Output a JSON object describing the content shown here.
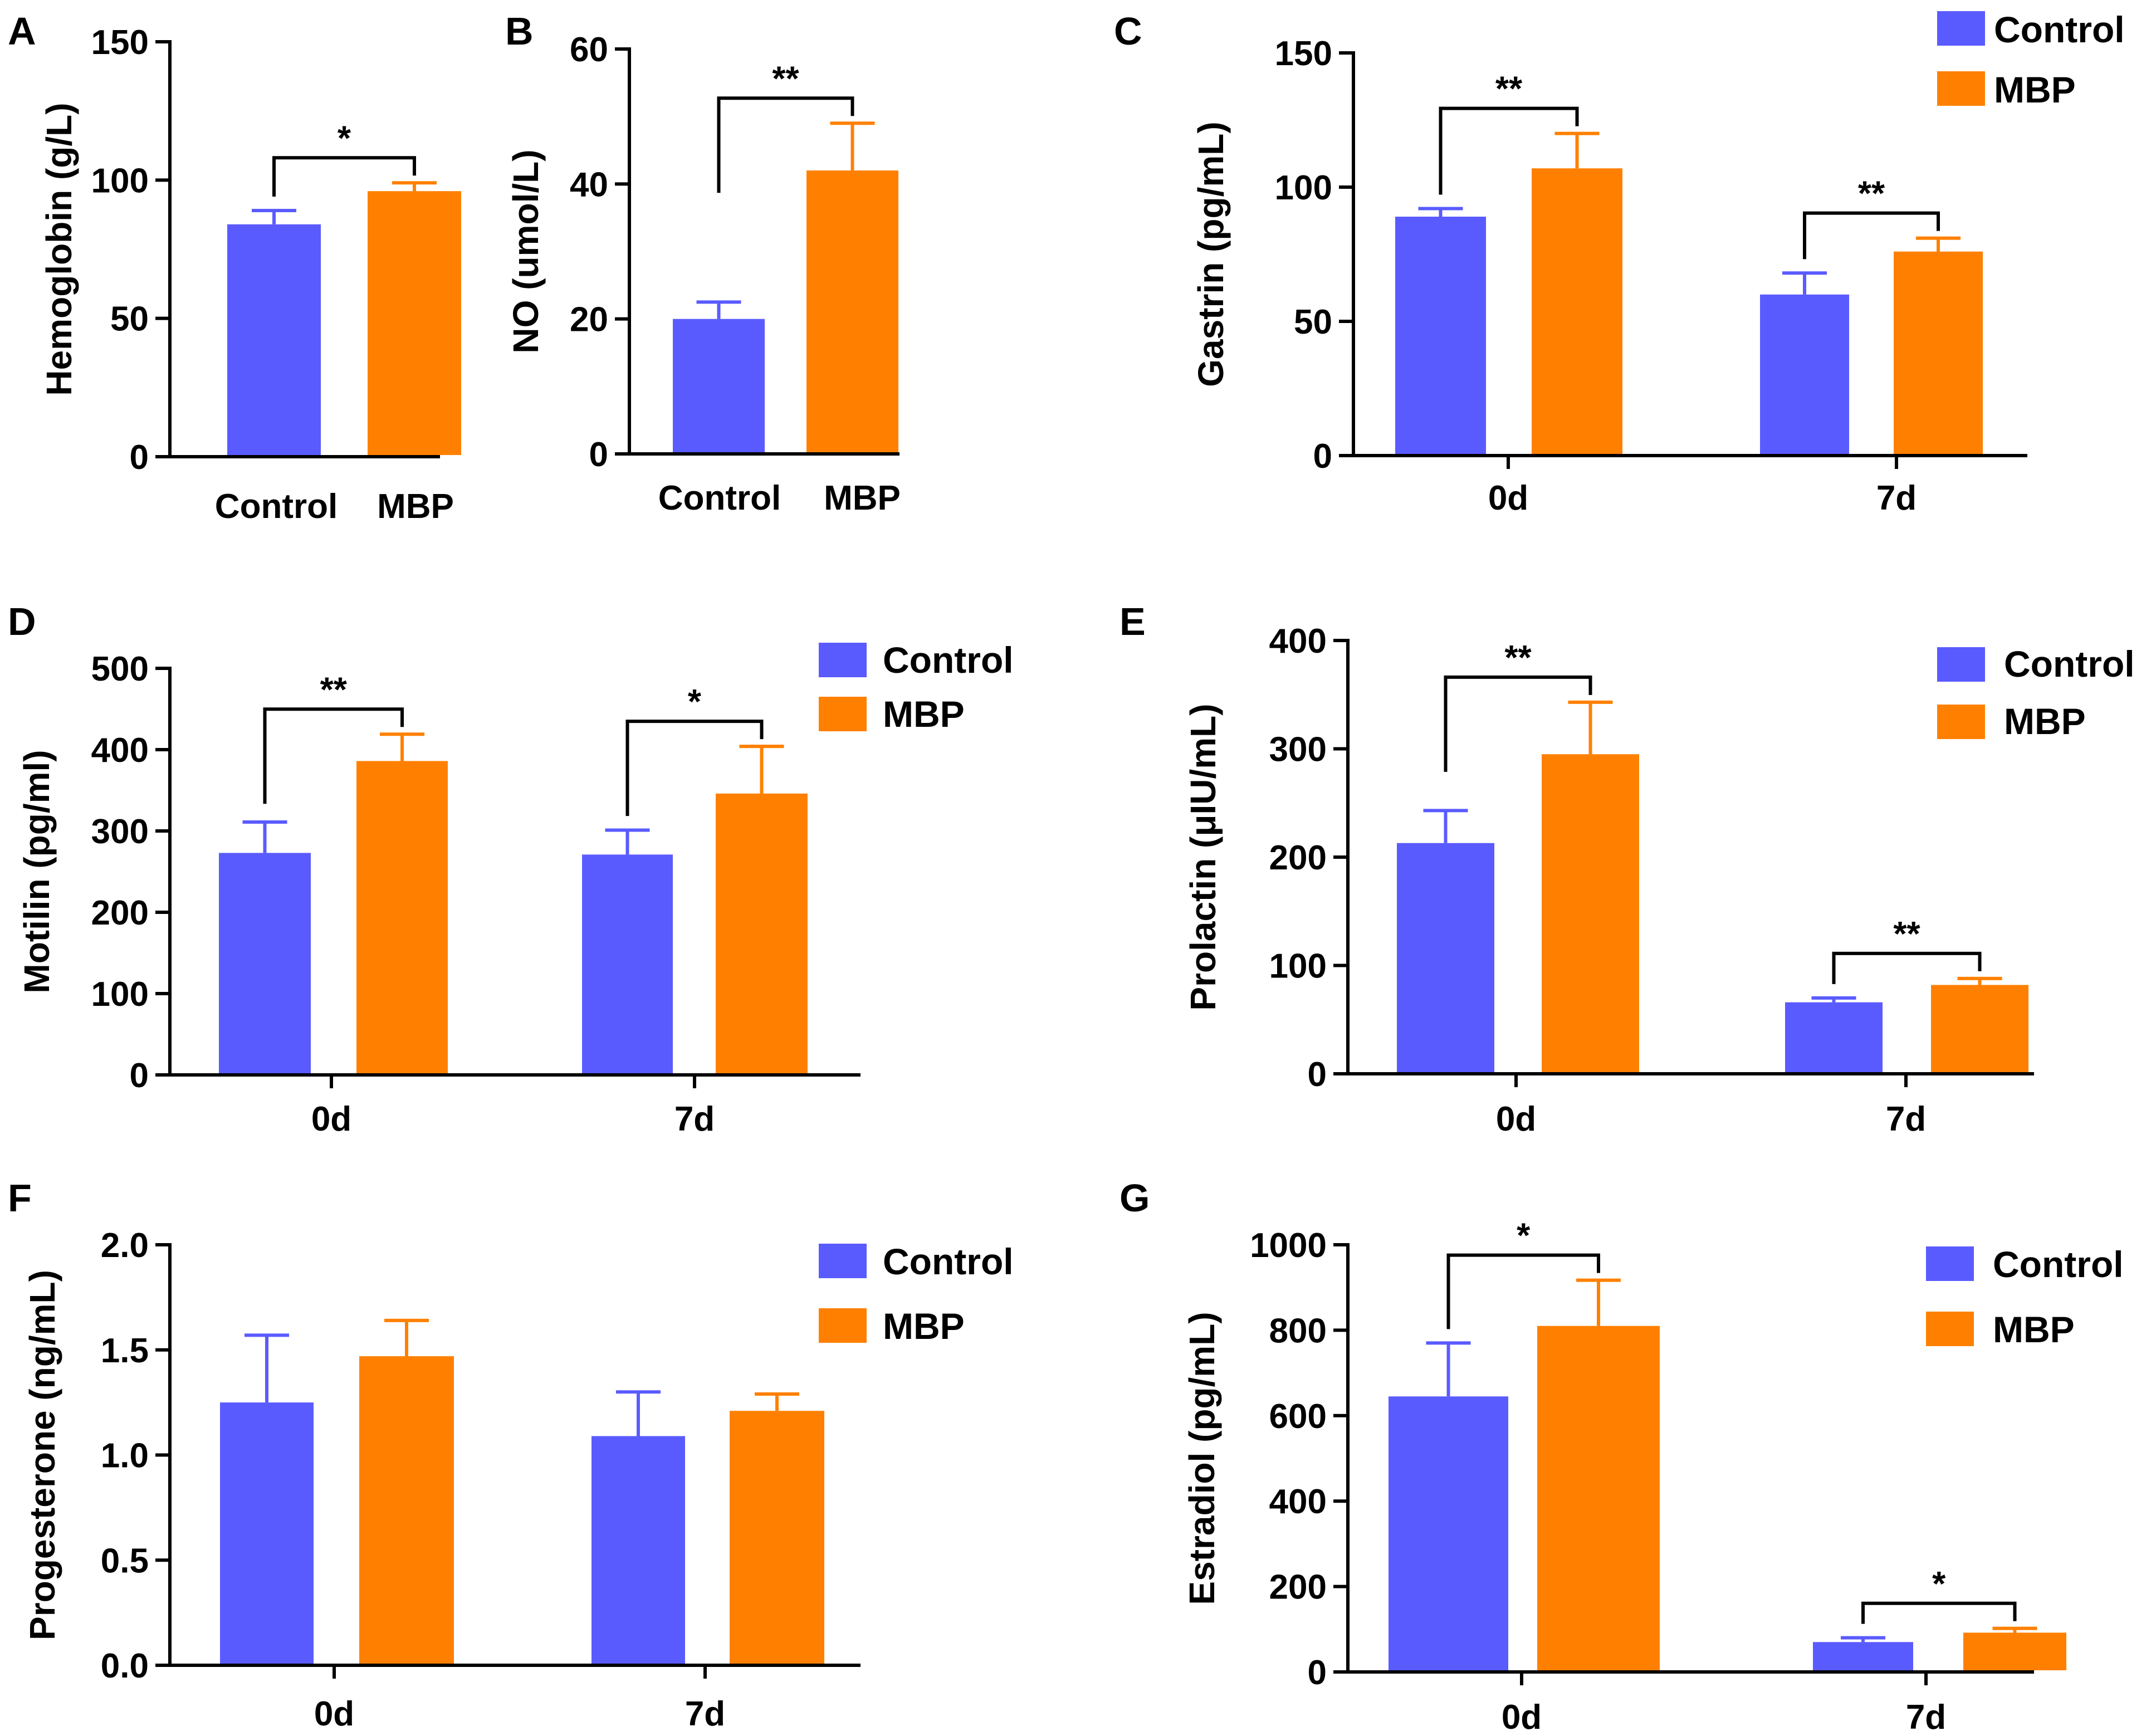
{
  "colors": {
    "control": "#5a5bff",
    "mbp": "#ff8000",
    "axis": "#000000"
  },
  "legend": {
    "control_label": "Control",
    "mbp_label": "MBP"
  },
  "chart_data": [
    {
      "panel": "A",
      "type": "bar",
      "title": "",
      "ylabel": "Hemoglobin (g/L)",
      "xlabel": "",
      "ylim": [
        0,
        150
      ],
      "yticks": [
        0,
        50,
        100,
        150
      ],
      "ytick_labels": [
        "0",
        "50",
        "100",
        "150"
      ],
      "categories": [
        "Control",
        "MBP"
      ],
      "values": [
        84,
        96
      ],
      "errors": [
        5,
        3
      ],
      "bar_colors": [
        "control",
        "mbp"
      ],
      "significance": [
        {
          "from": 0,
          "to": 1,
          "label": "*"
        }
      ],
      "legend": false
    },
    {
      "panel": "B",
      "type": "bar",
      "title": "",
      "ylabel": "NO (umol/L)",
      "xlabel": "",
      "ylim": [
        0,
        60
      ],
      "yticks": [
        0,
        20,
        40,
        60
      ],
      "ytick_labels": [
        "0",
        "20",
        "40",
        "60"
      ],
      "categories": [
        "Control",
        "MBP"
      ],
      "values": [
        20,
        42
      ],
      "errors": [
        2.5,
        7
      ],
      "bar_colors": [
        "control",
        "mbp"
      ],
      "significance": [
        {
          "from": 0,
          "to": 1,
          "label": "**"
        }
      ],
      "legend": false
    },
    {
      "panel": "C",
      "type": "bar",
      "title": "",
      "ylabel": "Gastrin (pg/mL)",
      "xlabel": "",
      "ylim": [
        0,
        150
      ],
      "yticks": [
        0,
        50,
        100,
        150
      ],
      "ytick_labels": [
        "0",
        "50",
        "100",
        "150"
      ],
      "categories": [
        "0d",
        "7d"
      ],
      "series": [
        {
          "name": "Control",
          "values": [
            89,
            60
          ],
          "errors": [
            3,
            8
          ]
        },
        {
          "name": "MBP",
          "values": [
            107,
            76
          ],
          "errors": [
            13,
            5
          ]
        }
      ],
      "significance": [
        {
          "group": 0,
          "label": "**"
        },
        {
          "group": 1,
          "label": "**"
        }
      ],
      "legend": true,
      "legend_position": "top-right"
    },
    {
      "panel": "D",
      "type": "bar",
      "title": "",
      "ylabel": "Motilin (pg/ml)",
      "xlabel": "",
      "ylim": [
        0,
        500
      ],
      "yticks": [
        0,
        100,
        200,
        300,
        400,
        500
      ],
      "ytick_labels": [
        "0",
        "100",
        "200",
        "300",
        "400",
        "500"
      ],
      "categories": [
        "0d",
        "7d"
      ],
      "series": [
        {
          "name": "Control",
          "values": [
            273,
            271
          ],
          "errors": [
            38,
            30
          ]
        },
        {
          "name": "MBP",
          "values": [
            386,
            346
          ],
          "errors": [
            33,
            58
          ]
        }
      ],
      "significance": [
        {
          "group": 0,
          "label": "**"
        },
        {
          "group": 1,
          "label": "*"
        }
      ],
      "legend": true,
      "legend_position": "top-right"
    },
    {
      "panel": "E",
      "type": "bar",
      "title": "",
      "ylabel": "Prolactin (μIU/mL)",
      "xlabel": "",
      "ylim": [
        0,
        400
      ],
      "yticks": [
        0,
        100,
        200,
        300,
        400
      ],
      "ytick_labels": [
        "0",
        "100",
        "200",
        "300",
        "400"
      ],
      "categories": [
        "0d",
        "7d"
      ],
      "series": [
        {
          "name": "Control",
          "values": [
            213,
            66
          ],
          "errors": [
            30,
            4
          ]
        },
        {
          "name": "MBP",
          "values": [
            295,
            82
          ],
          "errors": [
            48,
            6
          ]
        }
      ],
      "significance": [
        {
          "group": 0,
          "label": "**"
        },
        {
          "group": 1,
          "label": "**"
        }
      ],
      "legend": true,
      "legend_position": "top-right"
    },
    {
      "panel": "F",
      "type": "bar",
      "title": "",
      "ylabel": "Progesterone (ng/mL)",
      "xlabel": "",
      "ylim": [
        0,
        2
      ],
      "yticks": [
        0,
        0.5,
        1,
        1.5,
        2
      ],
      "ytick_labels": [
        "0.0",
        "0.5",
        "1.0",
        "1.5",
        "2.0"
      ],
      "categories": [
        "0d",
        "7d"
      ],
      "series": [
        {
          "name": "Control",
          "values": [
            1.25,
            1.09
          ],
          "errors": [
            0.32,
            0.21
          ]
        },
        {
          "name": "MBP",
          "values": [
            1.47,
            1.21
          ],
          "errors": [
            0.17,
            0.08
          ]
        }
      ],
      "significance": [],
      "legend": true,
      "legend_position": "top-right"
    },
    {
      "panel": "G",
      "type": "bar",
      "title": "",
      "ylabel": "Estradiol (pg/mL)",
      "xlabel": "",
      "ylim": [
        0,
        1000
      ],
      "yticks": [
        0,
        200,
        400,
        600,
        800,
        1000
      ],
      "ytick_labels": [
        "0",
        "200",
        "400",
        "600",
        "800",
        "1000"
      ],
      "categories": [
        "0d",
        "7d"
      ],
      "series": [
        {
          "name": "Control",
          "values": [
            645,
            70
          ],
          "errors": [
            125,
            10
          ]
        },
        {
          "name": "MBP",
          "values": [
            810,
            92
          ],
          "errors": [
            107,
            10
          ]
        }
      ],
      "significance": [
        {
          "group": 0,
          "label": "*"
        },
        {
          "group": 1,
          "label": "*"
        }
      ],
      "legend": true,
      "legend_position": "top-right"
    }
  ]
}
